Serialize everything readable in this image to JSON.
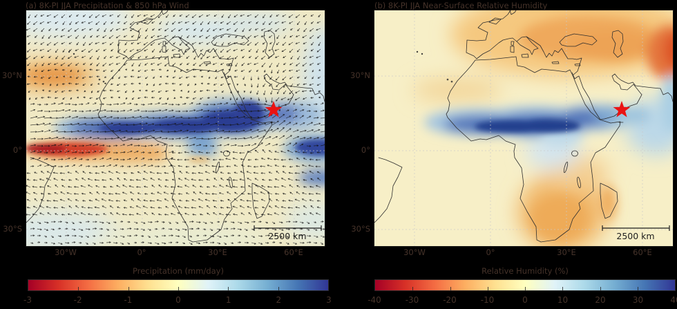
{
  "figure": {
    "background": "#000000",
    "text_color": "#46332a",
    "map_text_color": "#1d1d1d",
    "marker_color": "#ea1313",
    "coast_color": "#2d2d2d",
    "colormap_stops": [
      "#a50026",
      "#d73027",
      "#f46d43",
      "#fdae61",
      "#fee090",
      "#ffffbf",
      "#e0f3f8",
      "#abd9e9",
      "#74add1",
      "#4575b4",
      "#313695"
    ]
  },
  "panels": [
    {
      "id": "a",
      "title": "(a) 8K-PI JJA Precipitation & 850 hPa Wind",
      "y_ticks": [
        "30°N",
        "0°",
        "30°S"
      ],
      "x_ticks": [
        "30°W",
        "0°",
        "30°E",
        "60°E"
      ],
      "scale_bar_label": "2500 km",
      "colorbar": {
        "label": "Precipitation (mm/day)",
        "ticks": [
          "-3",
          "-2",
          "-1",
          "0",
          "1",
          "2",
          "3"
        ]
      }
    },
    {
      "id": "b",
      "title": "(b) 8K-PI JJA Near-Surface Relative Humidity",
      "y_ticks": [
        "30°N",
        "0°",
        "30°S"
      ],
      "x_ticks": [
        "30°W",
        "0°",
        "30°E",
        "60°E"
      ],
      "scale_bar_label": "2500 km",
      "colorbar": {
        "label": "Relative Humidity (%)",
        "ticks": [
          "-40",
          "-30",
          "-20",
          "-10",
          "0",
          "10",
          "20",
          "30",
          "40"
        ]
      }
    }
  ],
  "chart_data": [
    {
      "type": "heatmap",
      "panel": "a",
      "title": "(a) 8K-PI JJA Precipitation & 850 hPa Wind",
      "variable": "JJA precipitation anomaly (8K minus PI) shaded, with 850 hPa wind anomaly vectors",
      "units": "mm/day",
      "colormap": "diverging red-yellow-blue (red = drier, blue = wetter)",
      "colorbar": {
        "label": "Precipitation (mm/day)",
        "range": [
          -3,
          3
        ],
        "ticks": [
          -3,
          -2,
          -1,
          0,
          1,
          2,
          3
        ]
      },
      "x_axis": {
        "ticks": [
          "30°W",
          "0°",
          "30°E",
          "60°E"
        ],
        "extent_lon": [
          "~46°W",
          "~72°E"
        ]
      },
      "y_axis": {
        "ticks": [
          "30°N",
          "0°",
          "30°S"
        ],
        "extent_lat": [
          "~36°S",
          "~55°N"
        ]
      },
      "grid": "dashed graticule at 30° intervals",
      "marker": {
        "symbol": "red star",
        "color": "#ea1313",
        "location_lonlat": [
          "~52°E",
          "~17°N"
        ],
        "place": "southern Arabia (Oman/Dhofar region)"
      },
      "scale_bar": "2500 km",
      "regions": [
        {
          "area": "Sahel band ~5-18°N from Atlantic coast to Ethiopian highlands",
          "anomaly": "+2 to +3 mm/day"
        },
        {
          "area": "Red Sea / Gulf of Aden / southern Arabia around the star",
          "anomaly": "+1 to +3 mm/day"
        },
        {
          "area": "equatorial Atlantic and Gulf of Guinea just south of equator",
          "anomaly": "-2 to -3 mm/day"
        },
        {
          "area": "subtropical NE Atlantic off NW Africa (~28°N)",
          "anomaly": "-1 mm/day"
        },
        {
          "area": "equatorial western Indian Ocean bands",
          "anomaly": "+1.5 to +2.5 mm/day"
        },
        {
          "area": "remaining domain",
          "anomaly": "-0.5 to +0.5 mm/day"
        }
      ],
      "wind": "850 hPa vectors show enhanced southwesterly monsoon inflow across West Africa/Sahel and strong cross-equatorial flow converging on southern Arabia near the star; weaker northerlies over Europe/Mediterranean and easterly trades in the southern subtropics"
    },
    {
      "type": "heatmap",
      "panel": "b",
      "title": "(b) 8K-PI JJA Near-Surface Relative Humidity",
      "variable": "JJA near-surface relative humidity anomaly (8K minus PI)",
      "units": "%",
      "colormap": "diverging red-yellow-blue (red = drier, blue = moister)",
      "colorbar": {
        "label": "Relative Humidity (%)",
        "range": [
          -40,
          40
        ],
        "ticks": [
          -40,
          -30,
          -20,
          -10,
          0,
          10,
          20,
          30,
          40
        ]
      },
      "x_axis": {
        "ticks": [
          "30°W",
          "0°",
          "30°E",
          "60°E"
        ],
        "extent_lon": [
          "~46°W",
          "~72°E"
        ]
      },
      "y_axis": {
        "ticks": [
          "30°N",
          "0°",
          "30°S"
        ],
        "extent_lat": [
          "~36°S",
          "~55°N"
        ]
      },
      "grid": "dashed graticule at 30° intervals",
      "marker": {
        "symbol": "red star",
        "color": "#ea1313",
        "location_lonlat": [
          "~52°E",
          "~17°N"
        ],
        "place": "southern Arabia (Oman/Dhofar region)"
      },
      "scale_bar": "2500 km",
      "regions": [
        {
          "area": "Sahel band ~8-18°N from West Africa to Red Sea and southern Arabia",
          "anomaly": "+25 to +40 %"
        },
        {
          "area": "Arabian Sea and west coast of India",
          "anomaly": "+5 to +15 %"
        },
        {
          "area": "Europe, Anatolia, Black Sea / Caspian region",
          "anomaly": "-10 to -25 %"
        },
        {
          "area": "far northeast corner (Central Asia)",
          "anomaly": "-25 to -35 %"
        },
        {
          "area": "southern Africa and Madagascar",
          "anomaly": "-10 to -20 %"
        },
        {
          "area": "remaining oceans",
          "anomaly": "-5 to +5 %"
        }
      ]
    }
  ]
}
